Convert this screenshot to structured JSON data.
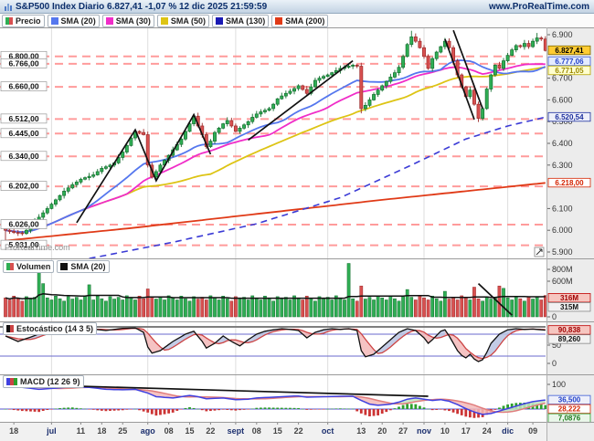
{
  "header": {
    "title": "S&P500 Index Diario 6.827,41 -1,07 % 12 dic 2025 21:59:59",
    "url": "www.ProRealTime.com"
  },
  "watermark": "ProRealTime.com",
  "legend": {
    "price": [
      {
        "label": "Precio",
        "sw": [
          "#2fae54",
          "#d85050"
        ]
      },
      {
        "label": "SMA (20)",
        "sw": [
          "#5577ee"
        ]
      },
      {
        "label": "SMA (30)",
        "sw": [
          "#f02dc8"
        ]
      },
      {
        "label": "SMA (50)",
        "sw": [
          "#ddc414"
        ]
      },
      {
        "label": "SMA (130)",
        "sw": [
          "#1a1ab4"
        ]
      },
      {
        "label": "SMA (200)",
        "sw": [
          "#e03a17"
        ]
      }
    ],
    "volume": [
      {
        "label": "Volumen",
        "sw": [
          "#2fae54",
          "#d85050"
        ]
      },
      {
        "label": "SMA (20)",
        "sw": [
          "#111111"
        ]
      }
    ],
    "stochastic": [
      {
        "label": "Estocástico (14 3 5)",
        "sw": [
          "#111111",
          "#cc4444"
        ]
      }
    ],
    "macd": [
      {
        "label": "MACD (12 26 9)",
        "sw": [
          "#4040e0",
          "#cc4444",
          "#2ca02c"
        ]
      }
    ]
  },
  "chart_data": {
    "type": "candlestick",
    "instrument": "S&P500 Index",
    "timeframe": "Diario",
    "last_price": "6.827,41",
    "change_pct": "-1,07 %",
    "timestamp": "12 dic 2025 21:59:59",
    "x_labels": [
      [
        "18",
        2
      ],
      [
        "jul",
        11
      ],
      [
        "11",
        18
      ],
      [
        "18",
        23
      ],
      [
        "25",
        28
      ],
      [
        "ago",
        34
      ],
      [
        "08",
        39
      ],
      [
        "15",
        44
      ],
      [
        "22",
        49
      ],
      [
        "sept",
        55
      ],
      [
        "08",
        60
      ],
      [
        "15",
        65
      ],
      [
        "22",
        70
      ],
      [
        "oct",
        77
      ],
      [
        "13",
        85
      ],
      [
        "20",
        90
      ],
      [
        "27",
        95
      ],
      [
        "nov",
        100
      ],
      [
        "10",
        105
      ],
      [
        "17",
        110
      ],
      [
        "24",
        115
      ],
      [
        "dic",
        120
      ],
      [
        "09",
        126
      ]
    ],
    "month_labels": [
      "jul",
      "ago",
      "sept",
      "oct",
      "nov",
      "dic"
    ],
    "month_gridline_indices": [
      11,
      34,
      55,
      77,
      100,
      120
    ],
    "price_panel": {
      "ylim": [
        5857,
        6934
      ],
      "closes": [
        6000,
        5995,
        5990,
        5988,
        5985,
        6000,
        6020,
        6040,
        6060,
        6080,
        6100,
        6120,
        6140,
        6160,
        6180,
        6195,
        6210,
        6222,
        6235,
        6242,
        6248,
        6255,
        6270,
        6285,
        6292,
        6300,
        6310,
        6335,
        6360,
        6390,
        6425,
        6455,
        6450,
        6440,
        6300,
        6245,
        6270,
        6300,
        6322,
        6345,
        6370,
        6395,
        6420,
        6455,
        6490,
        6525,
        6480,
        6440,
        6385,
        6410,
        6450,
        6470,
        6490,
        6505,
        6480,
        6455,
        6470,
        6485,
        6500,
        6520,
        6535,
        6545,
        6552,
        6560,
        6580,
        6605,
        6618,
        6630,
        6640,
        6652,
        6665,
        6648,
        6630,
        6660,
        6690,
        6700,
        6708,
        6715,
        6725,
        6735,
        6745,
        6750,
        6755,
        6760,
        6755,
        6560,
        6575,
        6600,
        6625,
        6645,
        6665,
        6685,
        6705,
        6725,
        6750,
        6800,
        6855,
        6890,
        6870,
        6840,
        6800,
        6745,
        6790,
        6820,
        6845,
        6870,
        6840,
        6780,
        6715,
        6660,
        6615,
        6645,
        6580,
        6515,
        6560,
        6650,
        6715,
        6760,
        6745,
        6780,
        6805,
        6830,
        6850,
        6845,
        6860,
        6845,
        6870,
        6885,
        6880,
        6827.41
      ],
      "first_open": 6015,
      "wick_overrides": {
        "0": {
          "low": 5920
        },
        "85": {
          "low": 6538
        },
        "97": {
          "high": 6918
        },
        "113": {
          "low": 6498
        },
        "127": {
          "high": 6908
        },
        "129": {
          "high": 6893
        }
      },
      "levels": [
        {
          "label": "6.800,00",
          "value": 6800
        },
        {
          "label": "6.766,00",
          "value": 6766
        },
        {
          "label": "6.660,00",
          "value": 6660
        },
        {
          "label": "6.512,00",
          "value": 6512
        },
        {
          "label": "6.445,00",
          "value": 6445
        },
        {
          "label": "6.340,00",
          "value": 6340
        },
        {
          "label": "6.202,00",
          "value": 6202
        },
        {
          "label": "6.026,00",
          "value": 6026
        },
        {
          "label": "5.931,00",
          "value": 5931
        }
      ],
      "sma_windows": {
        "sma20": 20,
        "sma30": 30,
        "sma50": 50
      },
      "sma_control_points": {
        "sma130": [
          [
            20,
            5870
          ],
          [
            40,
            5945
          ],
          [
            60,
            6030
          ],
          [
            80,
            6150
          ],
          [
            97,
            6300
          ],
          [
            110,
            6420
          ],
          [
            120,
            6480
          ],
          [
            129,
            6520.54
          ]
        ],
        "sma200": [
          [
            0,
            5952
          ],
          [
            30,
            6010
          ],
          [
            60,
            6075
          ],
          [
            90,
            6140
          ],
          [
            110,
            6180
          ],
          [
            129,
            6218
          ]
        ]
      },
      "trendlines": [
        [
          [
            17,
            6035
          ],
          [
            31,
            6462
          ],
          [
            36,
            6228
          ],
          [
            45,
            6532
          ],
          [
            49,
            6350
          ]
        ],
        [
          [
            58,
            6415
          ],
          [
            83,
            6780
          ]
        ],
        [
          [
            105,
            6880
          ],
          [
            112,
            6510
          ]
        ],
        [
          [
            107,
            6920
          ],
          [
            114,
            6560
          ]
        ]
      ],
      "axis_ticks": [
        [
          "6.900",
          6900
        ],
        [
          "6.700",
          6700
        ],
        [
          "6.600",
          6600
        ],
        [
          "6.500",
          6500
        ],
        [
          "6.400",
          6400
        ],
        [
          "6.300",
          6300
        ],
        [
          "6.100",
          6100
        ],
        [
          "6.000",
          6000
        ],
        [
          "5.900",
          5900
        ]
      ],
      "axis_labels": [
        {
          "text": "6.827,41",
          "value": 6827.41,
          "bg": "#ffcc33",
          "fg": "#000000",
          "bd": "#7a6400"
        },
        {
          "text": "6.777,06",
          "value": 6777.06,
          "bg": "#e4ecff",
          "fg": "#2140c8",
          "bd": "#3b5bd6"
        },
        {
          "text": "6.771,05",
          "value": 6761,
          "bg": "#ffffcf",
          "fg": "#9a8800",
          "bd": "#b4a200"
        },
        {
          "text": "6.520,54",
          "value": 6520.54,
          "bg": "#eef0fa",
          "fg": "#1c2f9e",
          "bd": "#1c2f9e"
        },
        {
          "text": "6.218,00",
          "value": 6218,
          "bg": "#ffffff",
          "fg": "#d42300",
          "bd": "#d42300"
        }
      ],
      "colors": {
        "up": "#2fae54",
        "up_border": "#156f30",
        "down": "#d85050",
        "down_border": "#9c2b2b",
        "sma20": "#5577ee",
        "sma30": "#f02dc8",
        "sma50": "#ddc414",
        "sma130": "#3b3bd6",
        "sma200": "#e03a17",
        "level": "#ff8a8a",
        "trendline": "#111111"
      }
    },
    "volume_panel": {
      "unit": "M",
      "volumes": [
        320,
        285,
        350,
        305,
        265,
        340,
        300,
        330,
        820,
        560,
        320,
        285,
        350,
        305,
        265,
        340,
        300,
        330,
        285,
        355,
        540,
        285,
        350,
        305,
        265,
        340,
        300,
        330,
        285,
        355,
        320,
        285,
        350,
        305,
        470,
        340,
        300,
        330,
        285,
        355,
        320,
        285,
        350,
        305,
        265,
        340,
        300,
        330,
        285,
        355,
        320,
        285,
        350,
        305,
        265,
        340,
        300,
        330,
        285,
        355,
        320,
        285,
        350,
        305,
        265,
        340,
        300,
        330,
        285,
        355,
        320,
        285,
        350,
        305,
        265,
        340,
        300,
        330,
        285,
        355,
        320,
        285,
        900,
        305,
        265,
        520,
        300,
        330,
        285,
        355,
        320,
        285,
        350,
        305,
        265,
        340,
        460,
        330,
        285,
        355,
        320,
        285,
        350,
        305,
        265,
        430,
        300,
        330,
        285,
        355,
        320,
        285,
        500,
        305,
        265,
        340,
        300,
        330,
        520,
        480,
        320,
        285,
        350,
        305,
        265,
        340,
        300,
        330,
        285,
        360
      ],
      "sma_window": 20,
      "trendline": [
        [
          113,
          560
        ],
        [
          121,
          30
        ]
      ],
      "axis_ticks": [
        [
          "800M",
          800
        ],
        [
          "600M",
          600
        ],
        [
          "0",
          0
        ]
      ],
      "axis_labels": [
        {
          "text": "316M",
          "value": 316,
          "bg": "#f6c6c0",
          "fg": "#a00000",
          "bd": "#c00000"
        },
        {
          "text": "315M",
          "value": 315,
          "bg": "#f2f2f2",
          "fg": "#111111",
          "bd": "#888888"
        }
      ]
    },
    "stochastic_panel": {
      "params": "14 3 5",
      "range": [
        0,
        100
      ],
      "overbought": 80,
      "oversold": 20,
      "k_control_points": [
        [
          0,
          75
        ],
        [
          3,
          60
        ],
        [
          6,
          72
        ],
        [
          9,
          85
        ],
        [
          12,
          92
        ],
        [
          16,
          90
        ],
        [
          20,
          95
        ],
        [
          24,
          90
        ],
        [
          28,
          96
        ],
        [
          31,
          97
        ],
        [
          33,
          85
        ],
        [
          34,
          45
        ],
        [
          35,
          28
        ],
        [
          37,
          35
        ],
        [
          40,
          60
        ],
        [
          43,
          80
        ],
        [
          45,
          88
        ],
        [
          47,
          60
        ],
        [
          48,
          42
        ],
        [
          50,
          55
        ],
        [
          52,
          75
        ],
        [
          54,
          60
        ],
        [
          56,
          48
        ],
        [
          58,
          65
        ],
        [
          60,
          80
        ],
        [
          62,
          88
        ],
        [
          64,
          92
        ],
        [
          66,
          95
        ],
        [
          68,
          93
        ],
        [
          70,
          90
        ],
        [
          72,
          70
        ],
        [
          74,
          85
        ],
        [
          76,
          92
        ],
        [
          78,
          95
        ],
        [
          80,
          93
        ],
        [
          82,
          95
        ],
        [
          84,
          90
        ],
        [
          85,
          35
        ],
        [
          86,
          18
        ],
        [
          88,
          25
        ],
        [
          90,
          45
        ],
        [
          92,
          65
        ],
        [
          94,
          85
        ],
        [
          96,
          95
        ],
        [
          98,
          90
        ],
        [
          100,
          70
        ],
        [
          101,
          55
        ],
        [
          102,
          65
        ],
        [
          104,
          88
        ],
        [
          105,
          92
        ],
        [
          106,
          75
        ],
        [
          107,
          55
        ],
        [
          108,
          35
        ],
        [
          109,
          22
        ],
        [
          110,
          15
        ],
        [
          111,
          25
        ],
        [
          112,
          12
        ],
        [
          113,
          5
        ],
        [
          114,
          10
        ],
        [
          115,
          30
        ],
        [
          116,
          55
        ],
        [
          118,
          80
        ],
        [
          120,
          92
        ],
        [
          122,
          95
        ],
        [
          124,
          93
        ],
        [
          126,
          94
        ],
        [
          128,
          92
        ],
        [
          129,
          91
        ]
      ],
      "d_smoothing": 5,
      "axis_ticks": [
        [
          "50",
          50
        ],
        [
          "0",
          0
        ]
      ],
      "axis_labels": [
        {
          "text": "90,838",
          "value": 90.838,
          "bg": "#f6c6c0",
          "fg": "#a00000",
          "bd": "#c00000"
        },
        {
          "text": "89,260",
          "value": 89.26,
          "bg": "#f2f2f2",
          "fg": "#111111",
          "bd": "#888888"
        }
      ]
    },
    "macd_panel": {
      "params": "12 26 9",
      "macd_control_points": [
        [
          0,
          100
        ],
        [
          4,
          88
        ],
        [
          8,
          80
        ],
        [
          12,
          85
        ],
        [
          16,
          90
        ],
        [
          20,
          88
        ],
        [
          24,
          80
        ],
        [
          28,
          78
        ],
        [
          31,
          80
        ],
        [
          34,
          65
        ],
        [
          36,
          50
        ],
        [
          40,
          45
        ],
        [
          44,
          55
        ],
        [
          46,
          50
        ],
        [
          48,
          42
        ],
        [
          52,
          45
        ],
        [
          55,
          38
        ],
        [
          58,
          40
        ],
        [
          60,
          45
        ],
        [
          64,
          48
        ],
        [
          68,
          52
        ],
        [
          70,
          53
        ],
        [
          72,
          48
        ],
        [
          76,
          50
        ],
        [
          80,
          52
        ],
        [
          83,
          52
        ],
        [
          85,
          35
        ],
        [
          87,
          20
        ],
        [
          89,
          15
        ],
        [
          92,
          20
        ],
        [
          94,
          28
        ],
        [
          96,
          40
        ],
        [
          98,
          45
        ],
        [
          100,
          40
        ],
        [
          102,
          35
        ],
        [
          104,
          38
        ],
        [
          106,
          32
        ],
        [
          108,
          18
        ],
        [
          110,
          2
        ],
        [
          112,
          -12
        ],
        [
          114,
          -22
        ],
        [
          116,
          -18
        ],
        [
          118,
          -8
        ],
        [
          120,
          2
        ],
        [
          122,
          12
        ],
        [
          124,
          22
        ],
        [
          126,
          30
        ],
        [
          128,
          35
        ],
        [
          129,
          36.5
        ]
      ],
      "signal_smoothing": 9,
      "trendline": [
        [
          11,
          96
        ],
        [
          101,
          52
        ]
      ],
      "axis_ticks": [
        [
          "100",
          100
        ]
      ],
      "axis_labels": [
        {
          "text": "36,500",
          "value": 36.5,
          "bg": "#eef0fa",
          "fg": "#2140c8",
          "bd": "#3b5bd6"
        },
        {
          "text": "28,222",
          "value": 28.222,
          "bg": "#ffffff",
          "fg": "#d42300",
          "bd": "#d42300"
        },
        {
          "text": "7,0876",
          "value": 7.0876,
          "bg": "#eaf6ea",
          "fg": "#1c7a1c",
          "bd": "#2ca02c"
        }
      ]
    }
  }
}
